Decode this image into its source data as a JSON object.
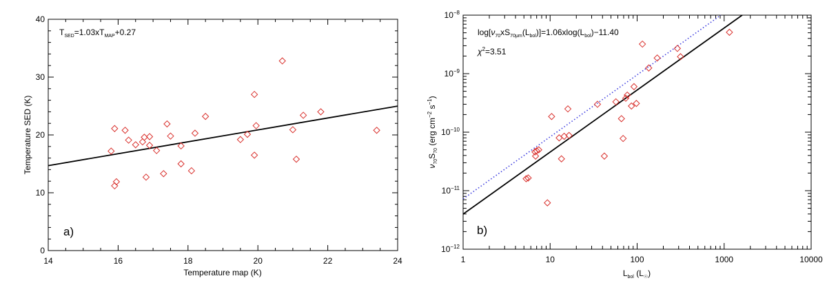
{
  "chart_data": [
    {
      "type": "scatter",
      "panel_label": "a)",
      "xlabel": "Temperature map (K)",
      "ylabel": "Temperature SED (K)",
      "xlim": [
        14,
        24
      ],
      "ylim": [
        0,
        40
      ],
      "xticks": [
        14,
        16,
        18,
        20,
        22,
        24
      ],
      "yticks": [
        0,
        10,
        20,
        30,
        40
      ],
      "xtick_labels": [
        "14",
        "16",
        "18",
        "20",
        "22",
        "24"
      ],
      "ytick_labels": [
        "0",
        "10",
        "20",
        "30",
        "40"
      ],
      "annotation": {
        "T": "T",
        "sub_sed": "SED",
        "eq_main": "=1.03xT",
        "sub_map": "MAP",
        "eq_tail": "+0.27"
      },
      "fit": {
        "slope": 1.03,
        "intercept": 0.27,
        "color": "#000000"
      },
      "marker": "diamond",
      "marker_color": "#d9302c",
      "points": [
        [
          15.8,
          17.2
        ],
        [
          15.9,
          21.1
        ],
        [
          15.9,
          11.2
        ],
        [
          15.95,
          11.9
        ],
        [
          16.2,
          20.8
        ],
        [
          16.3,
          19.1
        ],
        [
          16.5,
          18.3
        ],
        [
          16.7,
          18.8
        ],
        [
          16.75,
          19.6
        ],
        [
          16.8,
          12.7
        ],
        [
          16.9,
          19.7
        ],
        [
          16.9,
          18.2
        ],
        [
          17.1,
          17.3
        ],
        [
          17.3,
          13.3
        ],
        [
          17.4,
          21.9
        ],
        [
          17.5,
          19.8
        ],
        [
          17.8,
          18.1
        ],
        [
          17.8,
          15.0
        ],
        [
          18.1,
          13.8
        ],
        [
          18.2,
          20.3
        ],
        [
          18.5,
          23.2
        ],
        [
          19.5,
          19.2
        ],
        [
          19.7,
          20.1
        ],
        [
          19.9,
          27.0
        ],
        [
          19.9,
          16.5
        ],
        [
          19.95,
          21.6
        ],
        [
          20.7,
          32.8
        ],
        [
          21.0,
          20.9
        ],
        [
          21.1,
          15.8
        ],
        [
          21.3,
          23.4
        ],
        [
          21.8,
          24.0
        ],
        [
          23.4,
          20.8
        ]
      ]
    },
    {
      "type": "scatter",
      "panel_label": "b)",
      "xscale": "log",
      "yscale": "log",
      "xlabel": {
        "main": "L",
        "sub": "bol",
        "tail": " (L",
        "sun": "☉",
        "close": ")"
      },
      "ylabel": {
        "nu": "ν",
        "sub1": "70",
        "S": "S",
        "sub2": "70",
        "rest": " (erg cm",
        "exp1": "−2",
        "s": " s",
        "exp2": "−1",
        "close": ")"
      },
      "xlim": [
        1,
        10000
      ],
      "ylim": [
        1e-12,
        1e-08
      ],
      "xtick_labels": [
        "1",
        "10",
        "100",
        "1000",
        "10000"
      ],
      "ytick_labels": [
        {
          "base": "10",
          "exp": "−12"
        },
        {
          "base": "10",
          "exp": "−11"
        },
        {
          "base": "10",
          "exp": "−10"
        },
        {
          "base": "10",
          "exp": "−9"
        },
        {
          "base": "10",
          "exp": "−8"
        }
      ],
      "annotation": {
        "line1": {
          "a": "log[",
          "nu": "ν",
          "s1": "70",
          "b": "xS",
          "s2": "70μm",
          "c": "(L",
          "s3": "bol",
          "d": ")]=1.06xlog(L",
          "s4": "bol",
          "e": ")−11.40"
        },
        "line2": {
          "chi": "χ",
          "exp": "2",
          "tail": "=3.51"
        }
      },
      "fit": {
        "slope": 1.06,
        "intercept": -11.4,
        "color": "#000000",
        "style": "solid"
      },
      "dotted_line": {
        "slope": 1.06,
        "intercept": -11.14,
        "color": "#3b3bdf",
        "style": "dotted"
      },
      "marker": "diamond",
      "marker_color": "#d9302c",
      "points": [
        [
          5.3,
          1.6e-11
        ],
        [
          5.6,
          1.65e-11
        ],
        [
          6.7,
          4.6e-11
        ],
        [
          6.8,
          3.9e-11
        ],
        [
          7.0,
          4.8e-11
        ],
        [
          7.4,
          5e-11
        ],
        [
          9.3,
          6.2e-12
        ],
        [
          10.4,
          1.85e-10
        ],
        [
          12.7,
          8e-11
        ],
        [
          13.5,
          3.5e-11
        ],
        [
          14.5,
          8.5e-11
        ],
        [
          16.0,
          2.5e-10
        ],
        [
          16.5,
          8.8e-11
        ],
        [
          35.0,
          3e-10
        ],
        [
          42.0,
          3.9e-11
        ],
        [
          57.0,
          3.3e-10
        ],
        [
          66.0,
          1.7e-10
        ],
        [
          69.0,
          7.8e-11
        ],
        [
          74.0,
          3.8e-10
        ],
        [
          77.0,
          4.3e-10
        ],
        [
          86.0,
          2.8e-10
        ],
        [
          92.0,
          6e-10
        ],
        [
          98.0,
          3.1e-10
        ],
        [
          115.0,
          3.2e-09
        ],
        [
          136.0,
          1.25e-09
        ],
        [
          170.0,
          1.85e-09
        ],
        [
          290.0,
          2.7e-09
        ],
        [
          315.0,
          1.95e-09
        ],
        [
          1150.0,
          5.1e-09
        ]
      ]
    }
  ]
}
